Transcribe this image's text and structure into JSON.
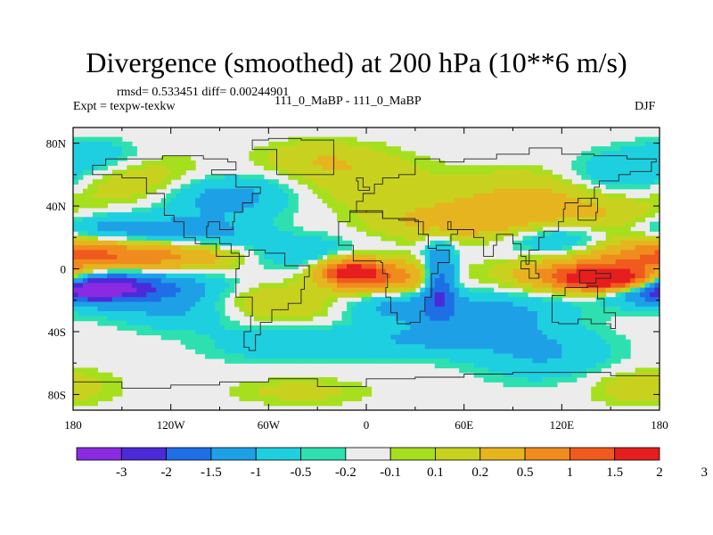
{
  "chart_data": {
    "type": "heatmap",
    "title": "Divergence (smoothed) at 200 hPa (10**6 m/s)",
    "stats": "rmsd= 0.533451 diff= 0.00244901",
    "experiment": "Expt = texpw-texkw",
    "case_label": "111_0_MaBP - 111_0_MaBP",
    "season": "DJF",
    "xlim": [
      -180,
      180
    ],
    "ylim": [
      -90,
      90
    ],
    "x_ticks": [
      {
        "value": -180,
        "label": "180"
      },
      {
        "value": -120,
        "label": "120W"
      },
      {
        "value": -60,
        "label": "60W"
      },
      {
        "value": 0,
        "label": "0"
      },
      {
        "value": 60,
        "label": "60E"
      },
      {
        "value": 120,
        "label": "120E"
      },
      {
        "value": 180,
        "label": "180"
      }
    ],
    "y_ticks": [
      {
        "value": 80,
        "label": "80N"
      },
      {
        "value": 40,
        "label": "40N"
      },
      {
        "value": 0,
        "label": "0"
      },
      {
        "value": -40,
        "label": "40S"
      },
      {
        "value": -80,
        "label": "80S"
      }
    ],
    "colorbar": {
      "colors": [
        "#8a2be2",
        "#4b2ad8",
        "#1e6ee6",
        "#1ea0e6",
        "#1ecfe0",
        "#2ee0b0",
        "#ececec",
        "#a6df1e",
        "#c8d21e",
        "#e6b41e",
        "#f08c1e",
        "#f05a1e",
        "#e61e1e"
      ],
      "levels": [
        "-3",
        "-2",
        "-1.5",
        "-1",
        "-0.5",
        "-0.2",
        "-0.1",
        "0.1",
        "0.2",
        "0.5",
        "1",
        "1.5",
        "2",
        "3"
      ]
    },
    "features": [
      {
        "lon": 162,
        "lat": -8,
        "slon": 26,
        "slat": 5,
        "value": 3.1
      },
      {
        "lon": 140,
        "lat": -3,
        "slon": 32,
        "slat": 7,
        "value": 1.6
      },
      {
        "lon": -175,
        "lat": -10,
        "slon": 22,
        "slat": 6,
        "value": -3.0
      },
      {
        "lon": -150,
        "lat": -12,
        "slon": 40,
        "slat": 8,
        "value": -1.4
      },
      {
        "lon": -175,
        "lat": 10,
        "slon": 30,
        "slat": 8,
        "value": 1.5
      },
      {
        "lon": -120,
        "lat": 8,
        "slon": 30,
        "slat": 7,
        "value": 1.0
      },
      {
        "lon": -160,
        "lat": 24,
        "slon": 30,
        "slat": 8,
        "value": -0.9
      },
      {
        "lon": -100,
        "lat": 22,
        "slon": 25,
        "slat": 7,
        "value": -0.6
      },
      {
        "lon": -140,
        "lat": 55,
        "slon": 35,
        "slat": 12,
        "value": 0.5
      },
      {
        "lon": -90,
        "lat": 46,
        "slon": 30,
        "slat": 10,
        "value": -0.8
      },
      {
        "lon": -165,
        "lat": 72,
        "slon": 22,
        "slat": 8,
        "value": -0.4
      },
      {
        "lon": -40,
        "lat": 10,
        "slon": 25,
        "slat": 8,
        "value": -0.5
      },
      {
        "lon": -10,
        "lat": -2,
        "slon": 14,
        "slat": 6,
        "value": 2.1
      },
      {
        "lon": 15,
        "lat": -6,
        "slon": 22,
        "slat": 8,
        "value": 1.2
      },
      {
        "lon": 45,
        "lat": -8,
        "slon": 7,
        "slat": 16,
        "value": -1.5
      },
      {
        "lon": 20,
        "lat": -22,
        "slon": 25,
        "slat": 8,
        "value": -0.7
      },
      {
        "lon": -60,
        "lat": -22,
        "slon": 30,
        "slat": 9,
        "value": 0.6
      },
      {
        "lon": -110,
        "lat": -28,
        "slon": 30,
        "slat": 8,
        "value": -0.5
      },
      {
        "lon": -50,
        "lat": -48,
        "slon": 35,
        "slat": 8,
        "value": -0.4
      },
      {
        "lon": 40,
        "lat": -45,
        "slon": 40,
        "slat": 8,
        "value": -0.5
      },
      {
        "lon": 80,
        "lat": -28,
        "slon": 30,
        "slat": 9,
        "value": -0.6
      },
      {
        "lon": 110,
        "lat": -55,
        "slon": 30,
        "slat": 12,
        "value": -0.5
      },
      {
        "lon": 60,
        "lat": 30,
        "slon": 35,
        "slat": 8,
        "value": 0.8
      },
      {
        "lon": 100,
        "lat": 45,
        "slon": 35,
        "slat": 12,
        "value": 0.6
      },
      {
        "lon": 120,
        "lat": 20,
        "slon": 25,
        "slat": 8,
        "value": -0.7
      },
      {
        "lon": 160,
        "lat": 60,
        "slon": 25,
        "slat": 10,
        "value": -0.6
      },
      {
        "lon": 150,
        "lat": 30,
        "slon": 30,
        "slat": 10,
        "value": 0.5
      },
      {
        "lon": 0,
        "lat": 55,
        "slon": 30,
        "slat": 12,
        "value": 0.4
      },
      {
        "lon": -30,
        "lat": 70,
        "slon": 25,
        "slat": 8,
        "value": 0.4
      },
      {
        "lon": 170,
        "lat": -75,
        "slon": 25,
        "slat": 8,
        "value": 0.4
      },
      {
        "lon": -40,
        "lat": -78,
        "slon": 30,
        "slat": 6,
        "value": 0.3
      }
    ]
  }
}
